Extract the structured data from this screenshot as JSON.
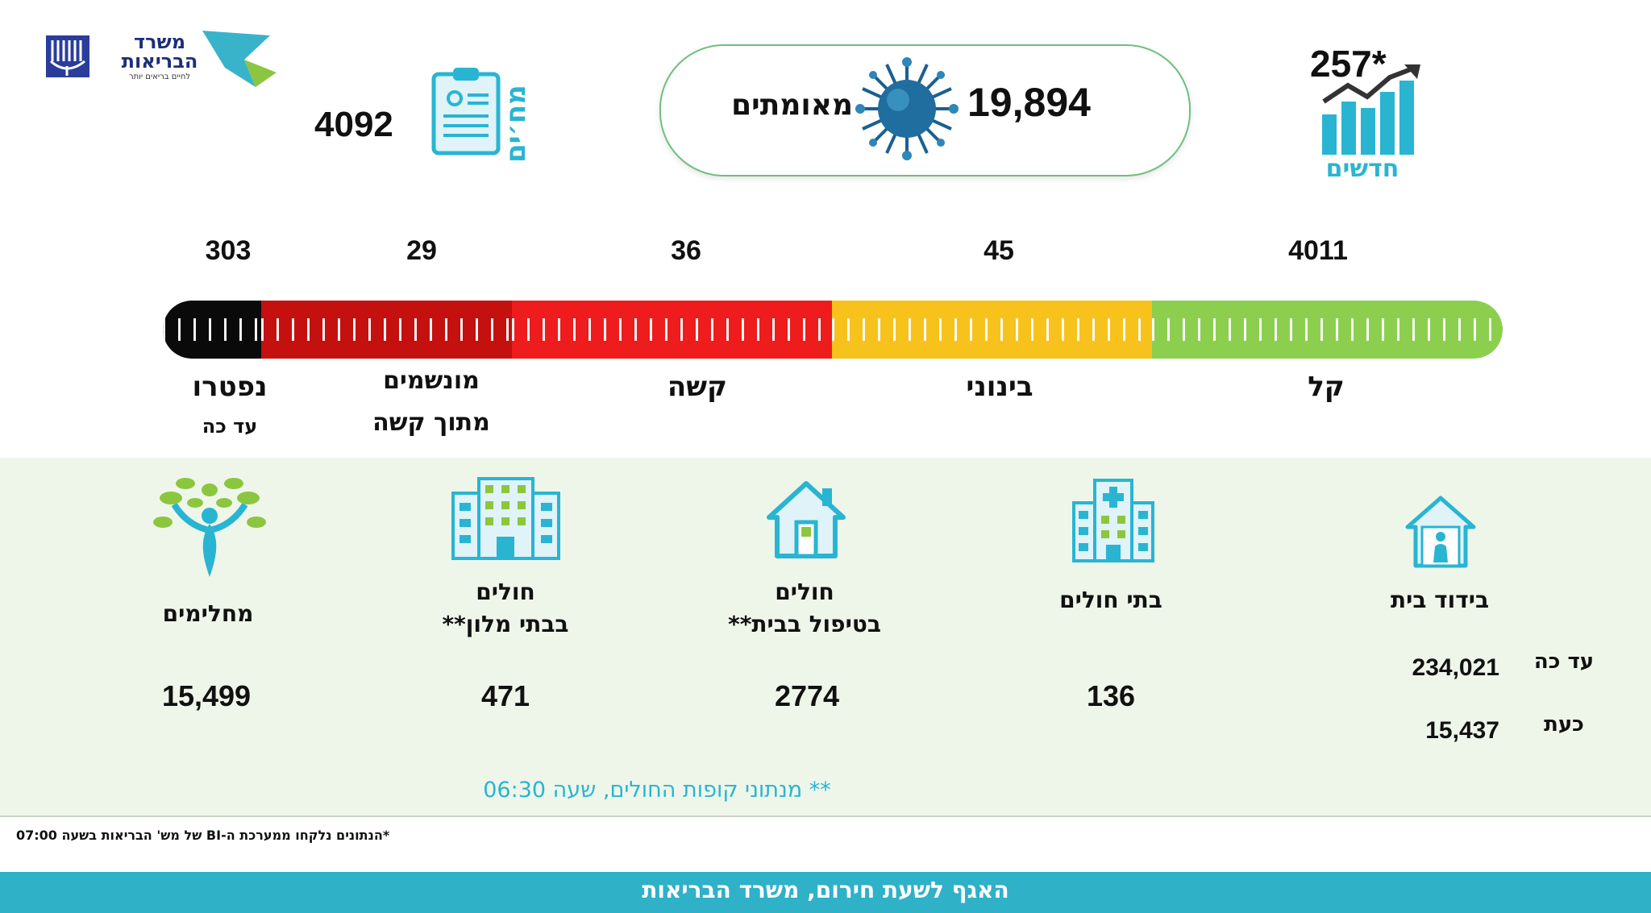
{
  "header": {
    "confirmed": {
      "value": "19,894",
      "label": "מאומתים"
    },
    "new_cases": {
      "value": "257*",
      "label": "חדשים"
    },
    "checkups": {
      "value": "4092",
      "label": "מח׳ים"
    },
    "ministry": {
      "name_line1": "משרד",
      "name_line2": "הבריאות",
      "tagline": "לחיים בריאים יותר"
    }
  },
  "severity": [
    {
      "key": "mild",
      "count": "4011",
      "label": "קל",
      "color": "#8ccf4f"
    },
    {
      "key": "moderate",
      "count": "45",
      "label": "בינוני",
      "color": "#f7c21b"
    },
    {
      "key": "serious",
      "count": "36",
      "label": "קשה",
      "color": "#ee1c1c"
    },
    {
      "key": "ventilated",
      "count": "29",
      "label_line1": "מונשמים",
      "label_line2": "מתוך קשה",
      "color": "#c4100e"
    },
    {
      "key": "deceased",
      "count": "303",
      "label_line1": "נפטרו",
      "label_line2": "עד כה",
      "color": "#0a0a0a"
    }
  ],
  "stats": {
    "home_isolation": {
      "label": "בידוד בית",
      "so_far_label": "עד כה",
      "so_far_value": "234,021",
      "now_label": "כעת",
      "now_value": "15,437"
    },
    "hospitals": {
      "label": "בתי חולים",
      "value": "136"
    },
    "home_care": {
      "label_line1": "חולים",
      "label_line2": "בטיפול בבית**",
      "value": "2774"
    },
    "hotels": {
      "label_line1": "חולים",
      "label_line2": "בבתי מלון**",
      "value": "471"
    },
    "recovered": {
      "label": "מחלימים",
      "value": "15,499"
    }
  },
  "footnotes": {
    "hmo": "** מנתוני קופות החולים, שעה 06:30",
    "bi": "*הנתונים נלקחו ממערכת ה-BI של מש' הבריאות בשעה 07:00"
  },
  "banner": {
    "text": "האגף לשעת חירום, משרד הבריאות"
  },
  "colors": {
    "accent": "#29b5d1",
    "panel_bg": "#eef6ea"
  }
}
